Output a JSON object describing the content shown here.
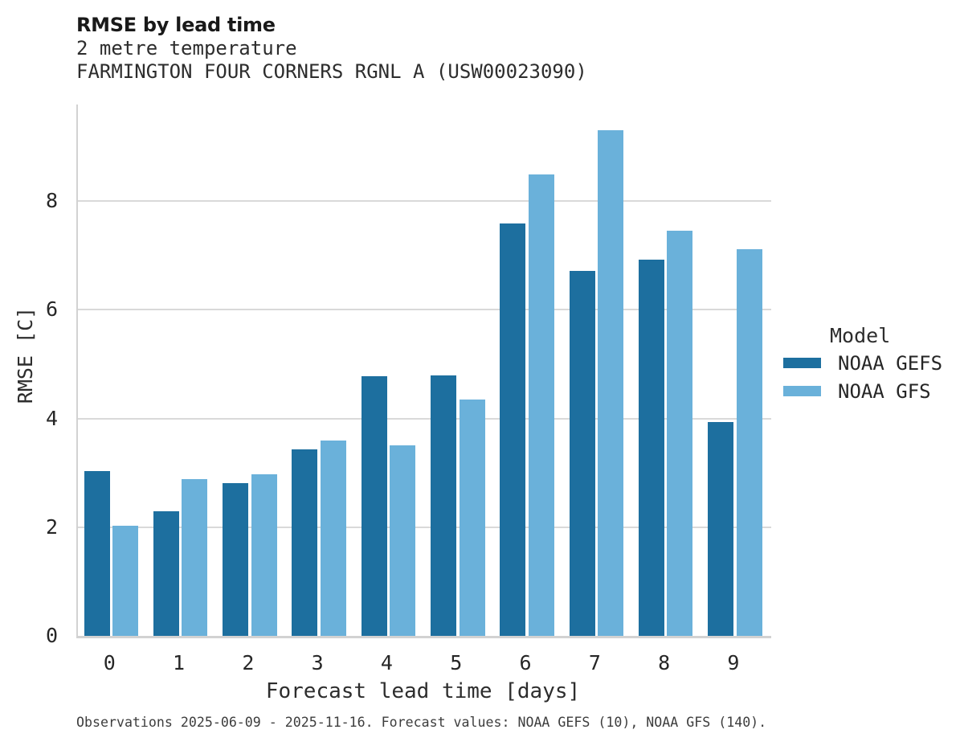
{
  "header": {
    "title": "RMSE by lead time",
    "subtitle_variable": "2 metre temperature",
    "subtitle_station": "FARMINGTON FOUR CORNERS RGNL A (USW00023090)"
  },
  "legend": {
    "title": "Model",
    "entries": [
      {
        "label": "NOAA GEFS",
        "color": "#1d6f9f"
      },
      {
        "label": "NOAA GFS",
        "color": "#6ab1da"
      }
    ]
  },
  "caption": "Observations 2025-06-09 - 2025-11-16. Forecast values: NOAA GEFS (10), NOAA GFS (140).",
  "chart_data": {
    "type": "bar",
    "title": "RMSE by lead time",
    "subtitle": [
      "2 metre temperature",
      "FARMINGTON FOUR CORNERS RGNL A (USW00023090)"
    ],
    "xlabel": "Forecast lead time [days]",
    "ylabel": "RMSE [C]",
    "categories": [
      0,
      1,
      2,
      3,
      4,
      5,
      6,
      7,
      8,
      9
    ],
    "series": [
      {
        "name": "NOAA GEFS",
        "color": "#1d6f9f",
        "values": [
          3.03,
          2.3,
          2.81,
          3.44,
          4.78,
          4.79,
          7.59,
          6.72,
          6.93,
          3.94
        ]
      },
      {
        "name": "NOAA GFS",
        "color": "#6ab1da",
        "values": [
          2.02,
          2.88,
          2.97,
          3.6,
          3.51,
          4.35,
          8.5,
          9.31,
          7.46,
          7.11
        ]
      }
    ],
    "yticks": [
      0,
      2,
      4,
      6,
      8
    ],
    "ylim": [
      0,
      9.78
    ],
    "grid": true,
    "legend_position": "right",
    "colors": {
      "grid": "#d9d9d9",
      "axis": "#d2d2d2",
      "background": "#ffffff"
    }
  }
}
